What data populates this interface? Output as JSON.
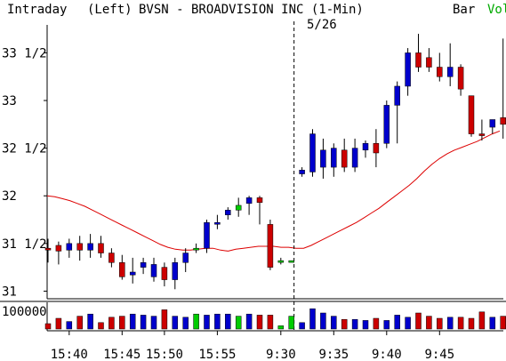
{
  "header": {
    "left_label": "Intraday",
    "axis_side": "(Left)",
    "title": "BVSN - BROADVISION INC (1-Min)",
    "bar_label": "Bar",
    "vol_label": "Vol",
    "date_marker": "5/26"
  },
  "colors": {
    "up": "#0000cc",
    "down": "#cc0000",
    "neutral": "#00cc00",
    "ma": "#dd0000",
    "vol_label": "#00aa00",
    "axis": "#000000"
  },
  "chart_data": {
    "type": "bar",
    "price_axis": {
      "ylim": [
        30.92,
        33.7
      ],
      "ticks": [
        31,
        31.5,
        32,
        32.5,
        33,
        33.5
      ],
      "tick_labels": [
        "31",
        "31 1/2",
        "32",
        "32 1/2",
        "33",
        "33 1/2"
      ]
    },
    "volume_axis": {
      "ylim": [
        0,
        100000
      ],
      "tick_label": "100000"
    },
    "x_tick_labels": [
      "15:40",
      "15:45",
      "15:50",
      "15:55",
      "9:30",
      "9:35",
      "9:40",
      "9:45"
    ],
    "x_tick_bar_index": [
      2,
      7,
      11,
      16,
      22,
      27,
      32,
      37
    ],
    "session_break_after_bar": 20,
    "bars": [
      {
        "o": 31.45,
        "h": 31.55,
        "l": 31.3,
        "c": 31.45,
        "v": 25000,
        "dir": "down"
      },
      {
        "o": 31.48,
        "h": 31.52,
        "l": 31.28,
        "c": 31.42,
        "v": 50000,
        "dir": "down"
      },
      {
        "o": 31.43,
        "h": 31.55,
        "l": 31.35,
        "c": 31.5,
        "v": 35000,
        "dir": "up"
      },
      {
        "o": 31.5,
        "h": 31.58,
        "l": 31.32,
        "c": 31.43,
        "v": 60000,
        "dir": "down"
      },
      {
        "o": 31.43,
        "h": 31.6,
        "l": 31.35,
        "c": 31.5,
        "v": 70000,
        "dir": "up"
      },
      {
        "o": 31.5,
        "h": 31.58,
        "l": 31.35,
        "c": 31.4,
        "v": 30000,
        "dir": "down"
      },
      {
        "o": 31.4,
        "h": 31.45,
        "l": 31.25,
        "c": 31.3,
        "v": 55000,
        "dir": "down"
      },
      {
        "o": 31.3,
        "h": 31.38,
        "l": 31.12,
        "c": 31.15,
        "v": 60000,
        "dir": "down"
      },
      {
        "o": 31.17,
        "h": 31.35,
        "l": 31.08,
        "c": 31.2,
        "v": 70000,
        "dir": "up"
      },
      {
        "o": 31.25,
        "h": 31.35,
        "l": 31.18,
        "c": 31.3,
        "v": 65000,
        "dir": "up"
      },
      {
        "o": 31.15,
        "h": 31.35,
        "l": 31.1,
        "c": 31.28,
        "v": 60000,
        "dir": "up"
      },
      {
        "o": 31.25,
        "h": 31.3,
        "l": 31.05,
        "c": 31.12,
        "v": 90000,
        "dir": "down"
      },
      {
        "o": 31.12,
        "h": 31.35,
        "l": 31.02,
        "c": 31.3,
        "v": 60000,
        "dir": "up"
      },
      {
        "o": 31.3,
        "h": 31.45,
        "l": 31.2,
        "c": 31.4,
        "v": 55000,
        "dir": "up"
      },
      {
        "o": 31.45,
        "h": 31.5,
        "l": 31.4,
        "c": 31.45,
        "v": 70000,
        "dir": "neutral"
      },
      {
        "o": 31.45,
        "h": 31.75,
        "l": 31.4,
        "c": 31.72,
        "v": 65000,
        "dir": "up"
      },
      {
        "o": 31.72,
        "h": 31.8,
        "l": 31.65,
        "c": 31.72,
        "v": 70000,
        "dir": "up"
      },
      {
        "o": 31.8,
        "h": 31.88,
        "l": 31.75,
        "c": 31.85,
        "v": 70000,
        "dir": "up"
      },
      {
        "o": 31.85,
        "h": 31.98,
        "l": 31.78,
        "c": 31.9,
        "v": 60000,
        "dir": "neutral"
      },
      {
        "o": 31.92,
        "h": 32.0,
        "l": 31.8,
        "c": 31.98,
        "v": 70000,
        "dir": "up"
      },
      {
        "o": 31.98,
        "h": 32.0,
        "l": 31.7,
        "c": 31.93,
        "v": 65000,
        "dir": "down"
      },
      {
        "o": 31.7,
        "h": 31.75,
        "l": 31.22,
        "c": 31.25,
        "v": 65000,
        "dir": "down"
      },
      {
        "o": 31.32,
        "h": 31.35,
        "l": 31.28,
        "c": 31.32,
        "v": 15000,
        "dir": "neutral"
      },
      {
        "o": 31.32,
        "h": 31.32,
        "l": 31.32,
        "c": 31.32,
        "v": 60000,
        "dir": "neutral"
      },
      {
        "o": 32.23,
        "h": 32.3,
        "l": 32.2,
        "c": 32.27,
        "v": 30000,
        "dir": "up"
      },
      {
        "o": 32.25,
        "h": 32.7,
        "l": 32.2,
        "c": 32.65,
        "v": 95000,
        "dir": "up"
      },
      {
        "o": 32.48,
        "h": 32.6,
        "l": 32.18,
        "c": 32.3,
        "v": 75000,
        "dir": "up"
      },
      {
        "o": 32.3,
        "h": 32.55,
        "l": 32.2,
        "c": 32.5,
        "v": 60000,
        "dir": "up"
      },
      {
        "o": 32.48,
        "h": 32.6,
        "l": 32.25,
        "c": 32.3,
        "v": 45000,
        "dir": "down"
      },
      {
        "o": 32.3,
        "h": 32.6,
        "l": 32.25,
        "c": 32.5,
        "v": 45000,
        "dir": "up"
      },
      {
        "o": 32.48,
        "h": 32.58,
        "l": 32.4,
        "c": 32.55,
        "v": 40000,
        "dir": "up"
      },
      {
        "o": 32.55,
        "h": 32.7,
        "l": 32.3,
        "c": 32.45,
        "v": 50000,
        "dir": "down"
      },
      {
        "o": 32.55,
        "h": 33.0,
        "l": 32.5,
        "c": 32.95,
        "v": 40000,
        "dir": "up"
      },
      {
        "o": 32.95,
        "h": 33.2,
        "l": 32.55,
        "c": 33.15,
        "v": 65000,
        "dir": "up"
      },
      {
        "o": 33.15,
        "h": 33.55,
        "l": 33.05,
        "c": 33.5,
        "v": 55000,
        "dir": "up"
      },
      {
        "o": 33.5,
        "h": 33.7,
        "l": 33.3,
        "c": 33.35,
        "v": 75000,
        "dir": "down"
      },
      {
        "o": 33.45,
        "h": 33.55,
        "l": 33.3,
        "c": 33.35,
        "v": 60000,
        "dir": "down"
      },
      {
        "o": 33.35,
        "h": 33.5,
        "l": 33.2,
        "c": 33.25,
        "v": 50000,
        "dir": "down"
      },
      {
        "o": 33.25,
        "h": 33.6,
        "l": 33.15,
        "c": 33.35,
        "v": 55000,
        "dir": "up"
      },
      {
        "o": 33.35,
        "h": 33.38,
        "l": 33.05,
        "c": 33.12,
        "v": 55000,
        "dir": "down"
      },
      {
        "o": 33.05,
        "h": 33.05,
        "l": 32.62,
        "c": 32.65,
        "v": 50000,
        "dir": "down"
      },
      {
        "o": 32.65,
        "h": 32.8,
        "l": 32.58,
        "c": 32.65,
        "v": 80000,
        "dir": "down"
      },
      {
        "o": 32.72,
        "h": 32.8,
        "l": 32.65,
        "c": 32.8,
        "v": 55000,
        "dir": "up"
      },
      {
        "o": 32.82,
        "h": 33.65,
        "l": 32.6,
        "c": 32.75,
        "v": 60000,
        "dir": "down"
      },
      {
        "o": 32.7,
        "h": 32.88,
        "l": 32.5,
        "c": 32.68,
        "v": 50000,
        "dir": "down"
      }
    ],
    "moving_average": {
      "values": [
        32.0,
        31.99,
        31.97,
        31.95,
        31.92,
        31.89,
        31.85,
        31.81,
        31.77,
        31.73,
        31.69,
        31.65,
        31.61,
        31.57,
        31.53,
        31.49,
        31.46,
        31.44,
        31.43,
        31.43,
        31.44,
        31.45,
        31.45,
        31.43,
        31.42,
        31.44,
        31.45,
        31.46,
        31.47,
        31.47,
        31.47,
        31.46,
        31.46,
        31.45,
        31.45,
        31.48,
        31.52,
        31.56,
        31.6,
        31.64,
        31.68,
        31.72,
        31.77,
        31.82,
        31.87,
        31.93,
        31.99,
        32.05,
        32.11,
        32.18,
        32.26,
        32.33,
        32.39,
        32.44,
        32.48,
        32.51,
        32.54,
        32.57,
        32.61,
        32.65,
        32.68
      ]
    }
  }
}
